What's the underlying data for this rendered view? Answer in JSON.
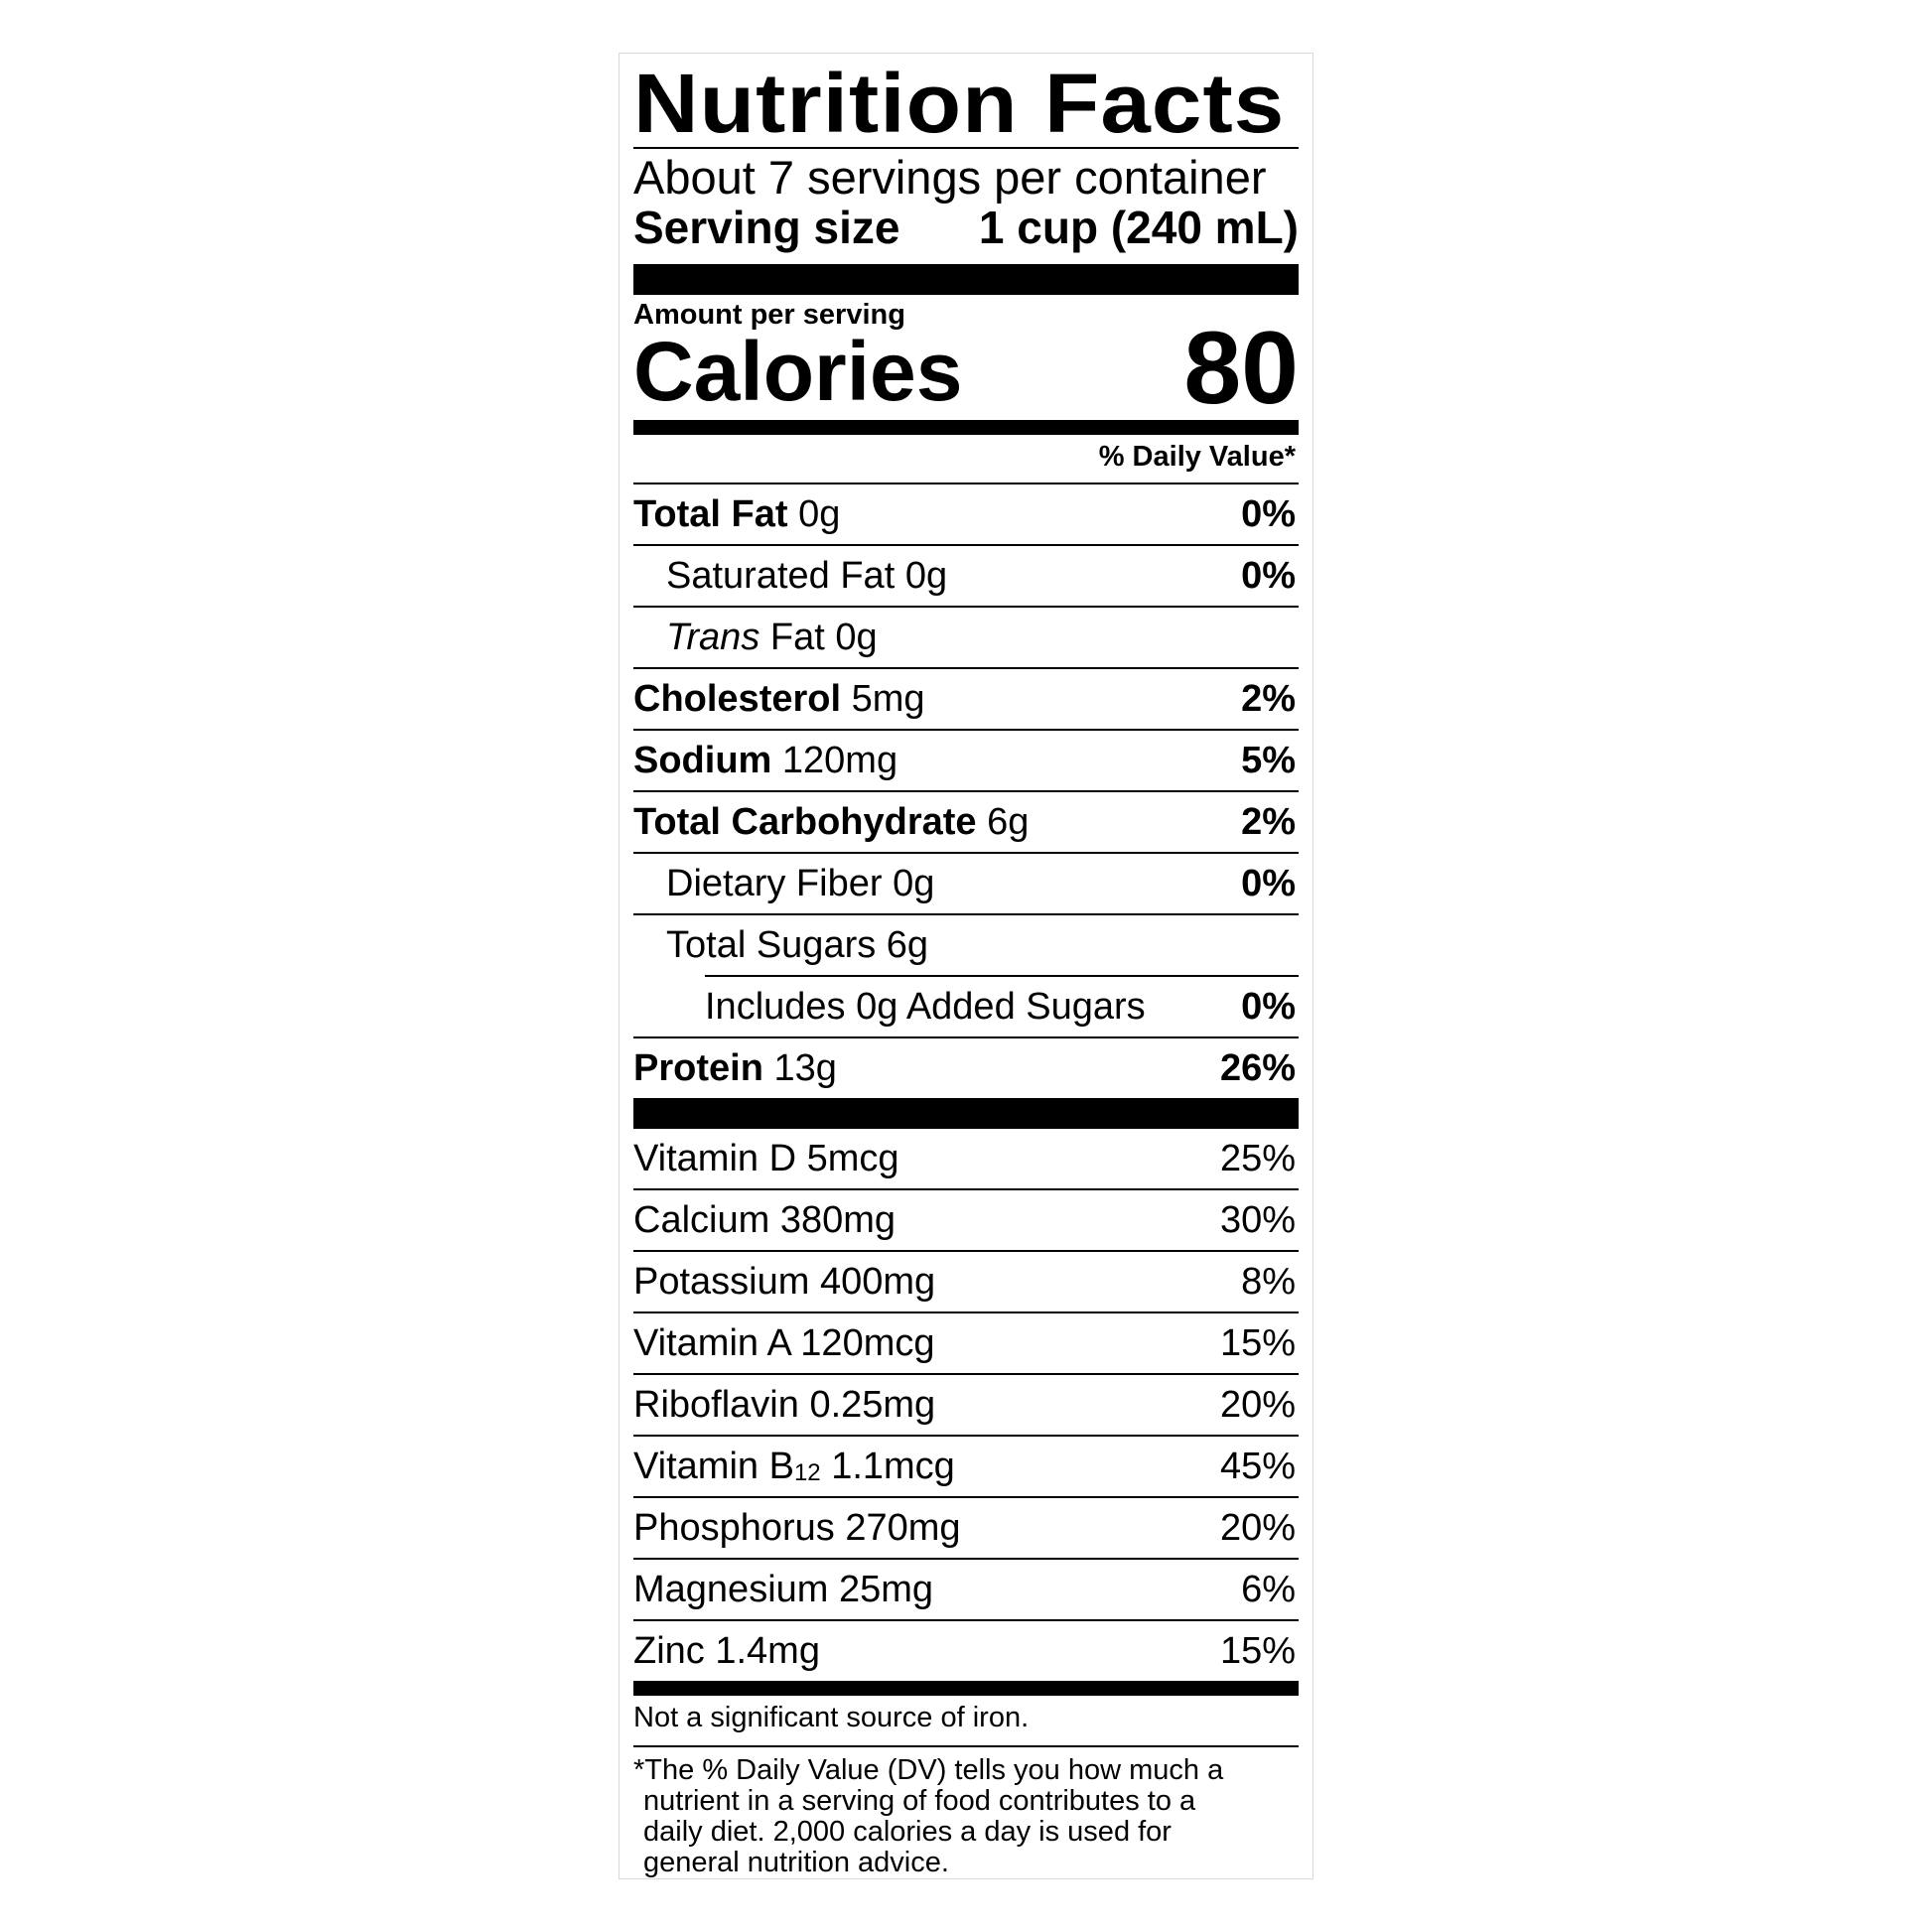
{
  "title": "Nutrition Facts",
  "servings_per_container": "About 7 servings per container",
  "serving_size": {
    "label": "Serving size",
    "value": "1 cup (240 mL)"
  },
  "amount_per_serving": "Amount per serving",
  "calories": {
    "label": "Calories",
    "value": "80"
  },
  "daily_value_header": "% Daily Value*",
  "nutrients": [
    {
      "name": "Total Fat",
      "amount": "0g",
      "dv": "0%",
      "bold": true,
      "indent": 0
    },
    {
      "name": "Saturated Fat",
      "amount": "0g",
      "dv": "0%",
      "bold": false,
      "indent": 1
    },
    {
      "name_italic": "Trans",
      "name": "Fat",
      "amount": "0g",
      "dv": "",
      "bold": false,
      "indent": 1
    },
    {
      "name": "Cholesterol",
      "amount": "5mg",
      "dv": "2%",
      "bold": true,
      "indent": 0
    },
    {
      "name": "Sodium",
      "amount": "120mg",
      "dv": "5%",
      "bold": true,
      "indent": 0
    },
    {
      "name": "Total Carbohydrate",
      "amount": "6g",
      "dv": "2%",
      "bold": true,
      "indent": 0
    },
    {
      "name": "Dietary Fiber",
      "amount": "0g",
      "dv": "0%",
      "bold": false,
      "indent": 1
    },
    {
      "name": "Total Sugars",
      "amount": "6g",
      "dv": "",
      "bold": false,
      "indent": 1
    },
    {
      "name": "Includes 0g Added Sugars",
      "amount": "",
      "dv": "0%",
      "bold": false,
      "indent": 2
    },
    {
      "name": "Protein",
      "amount": "13g",
      "dv": "26%",
      "bold": true,
      "indent": 0
    }
  ],
  "vitamins": [
    {
      "name": "Vitamin D",
      "amount": "5mcg",
      "dv": "25%"
    },
    {
      "name": "Calcium",
      "amount": "380mg",
      "dv": "30%"
    },
    {
      "name": "Potassium",
      "amount": "400mg",
      "dv": "8%"
    },
    {
      "name": "Vitamin A",
      "amount": "120mcg",
      "dv": "15%"
    },
    {
      "name": "Riboflavin",
      "amount": "0.25mg",
      "dv": "20%"
    },
    {
      "name": "Vitamin B",
      "sub": "12",
      "amount": "1.1mcg",
      "dv": "45%"
    },
    {
      "name": "Phosphorus",
      "amount": "270mg",
      "dv": "20%"
    },
    {
      "name": "Magnesium",
      "amount": "25mg",
      "dv": "6%"
    },
    {
      "name": "Zinc",
      "amount": "1.4mg",
      "dv": "15%"
    }
  ],
  "note": "Not a significant source of iron.",
  "footnote": [
    "*The % Daily Value (DV) tells you how much a",
    "nutrient in a serving of food contributes to a",
    "daily diet. 2,000 calories a day is used for",
    "general nutrition advice."
  ]
}
